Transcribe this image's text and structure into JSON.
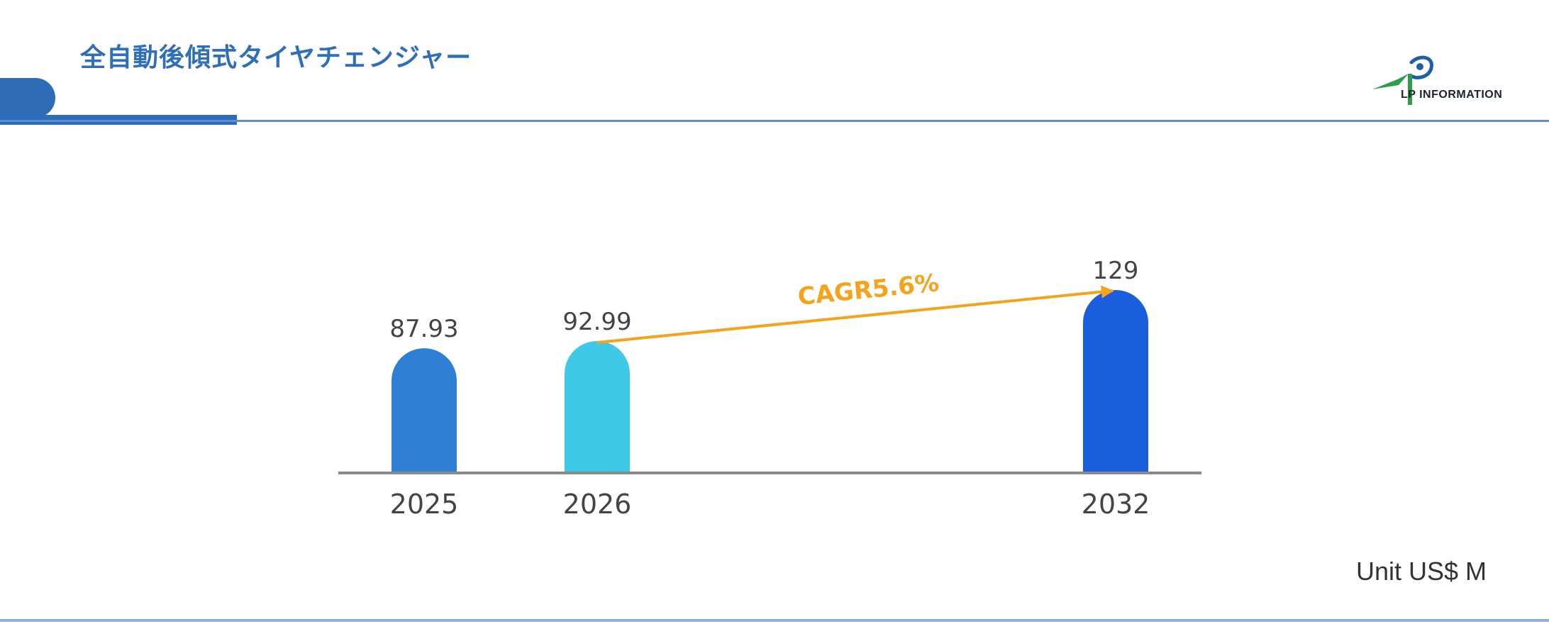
{
  "header": {
    "title": "全自動後傾式タイヤチェンジャー",
    "logo_text": "LP INFORMATION"
  },
  "colors": {
    "title": "#2d6fba",
    "accent_bar": "#2e6cb8",
    "bar_2025": "#2f7fd4",
    "bar_2026": "#3ec9e6",
    "bar_2032": "#1a5ddd",
    "cagr_arrow": "#f5a31d",
    "baseline": "#8a8a8a"
  },
  "chart_data": {
    "type": "bar",
    "categories": [
      "2025",
      "2026",
      "2032"
    ],
    "values": [
      87.93,
      92.99,
      129
    ],
    "value_labels": [
      "87.93",
      "92.99",
      "129"
    ],
    "bar_colors": [
      "#2f7fd4",
      "#3ec9e6",
      "#1a5ddd"
    ],
    "annotation": {
      "text": "CAGR5.6%",
      "from_category": "2026",
      "to_category": "2032"
    },
    "title": "",
    "xlabel": "",
    "ylabel": "",
    "grid": false
  },
  "footer": {
    "unit_label": "Unit US$ M"
  }
}
